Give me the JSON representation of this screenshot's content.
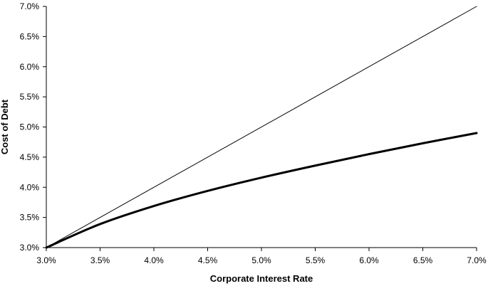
{
  "chart_data": {
    "type": "line",
    "xlabel": "Corporate Interest Rate",
    "ylabel": "Cost of Debt",
    "xlim": [
      0.03,
      0.07
    ],
    "ylim": [
      0.03,
      0.07
    ],
    "x_ticks": [
      "3.0%",
      "3.5%",
      "4.0%",
      "4.5%",
      "5.0%",
      "5.5%",
      "6.0%",
      "6.5%",
      "7.0%"
    ],
    "y_ticks": [
      "3.0%",
      "3.5%",
      "4.0%",
      "4.5%",
      "5.0%",
      "5.5%",
      "6.0%",
      "6.5%",
      "7.0%"
    ],
    "grid": false,
    "legend": "none",
    "series": [
      {
        "style": "thin",
        "color": "#000000",
        "x": [
          0.03,
          0.07
        ],
        "y": [
          0.03,
          0.07
        ]
      },
      {
        "style": "thick",
        "color": "#000000",
        "x": [
          0.03,
          0.035,
          0.04,
          0.045,
          0.05,
          0.055,
          0.06,
          0.065,
          0.07
        ],
        "y": [
          0.03,
          0.0339,
          0.0369,
          0.0394,
          0.0416,
          0.0436,
          0.0455,
          0.0473,
          0.049
        ]
      }
    ]
  }
}
